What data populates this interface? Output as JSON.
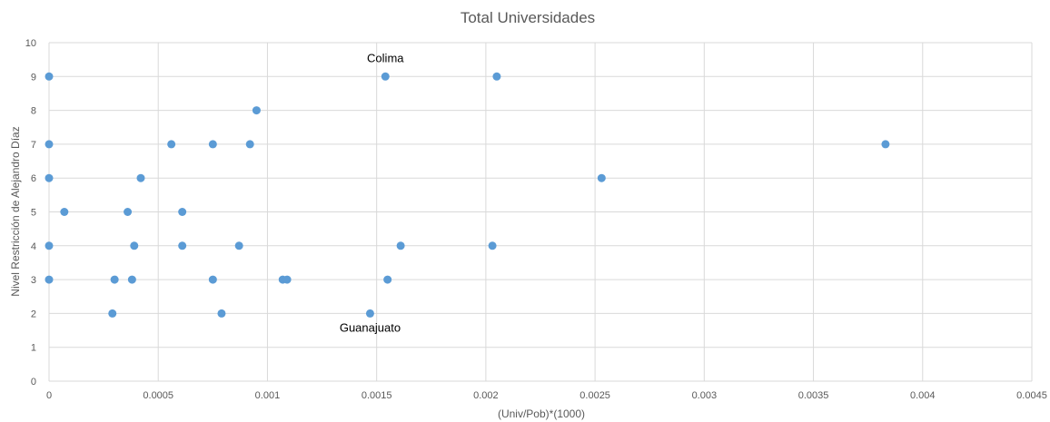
{
  "chart_data": {
    "type": "scatter",
    "title": "Total Universidades",
    "xlabel": "(Univ/Pob)*(1000)",
    "ylabel": "Nivel Restricción de Alejandro Díaz",
    "xlim": [
      0,
      0.0045
    ],
    "ylim": [
      0,
      10
    ],
    "x_ticks": [
      "0",
      "0.0005",
      "0.001",
      "0.0015",
      "0.002",
      "0.0025",
      "0.003",
      "0.0035",
      "0.004",
      "0.0045"
    ],
    "y_ticks": [
      "0",
      "1",
      "2",
      "3",
      "4",
      "5",
      "6",
      "7",
      "8",
      "9",
      "10"
    ],
    "grid": true,
    "marker_color": "#5b9bd5",
    "points": [
      {
        "x": 0,
        "y": 9
      },
      {
        "x": 0,
        "y": 7
      },
      {
        "x": 0,
        "y": 6
      },
      {
        "x": 0,
        "y": 4
      },
      {
        "x": 0,
        "y": 3
      },
      {
        "x": 7e-05,
        "y": 5
      },
      {
        "x": 0.00029,
        "y": 2
      },
      {
        "x": 0.0003,
        "y": 3
      },
      {
        "x": 0.00036,
        "y": 5
      },
      {
        "x": 0.00038,
        "y": 3
      },
      {
        "x": 0.00039,
        "y": 4
      },
      {
        "x": 0.00042,
        "y": 6
      },
      {
        "x": 0.00056,
        "y": 7
      },
      {
        "x": 0.00061,
        "y": 5
      },
      {
        "x": 0.00061,
        "y": 4
      },
      {
        "x": 0.00075,
        "y": 7
      },
      {
        "x": 0.00075,
        "y": 3
      },
      {
        "x": 0.00079,
        "y": 2
      },
      {
        "x": 0.00087,
        "y": 4
      },
      {
        "x": 0.00092,
        "y": 7
      },
      {
        "x": 0.00095,
        "y": 8
      },
      {
        "x": 0.00107,
        "y": 3
      },
      {
        "x": 0.00109,
        "y": 3
      },
      {
        "x": 0.00147,
        "y": 2
      },
      {
        "x": 0.00154,
        "y": 9
      },
      {
        "x": 0.00155,
        "y": 3
      },
      {
        "x": 0.00161,
        "y": 4
      },
      {
        "x": 0.00203,
        "y": 4
      },
      {
        "x": 0.00205,
        "y": 9
      },
      {
        "x": 0.00253,
        "y": 6
      },
      {
        "x": 0.00383,
        "y": 7
      }
    ],
    "annotations": [
      {
        "text": "Colima",
        "x": 0.00154,
        "y": 9,
        "position": "above"
      },
      {
        "text": "Guanajuato",
        "x": 0.00147,
        "y": 2,
        "position": "below"
      }
    ]
  }
}
